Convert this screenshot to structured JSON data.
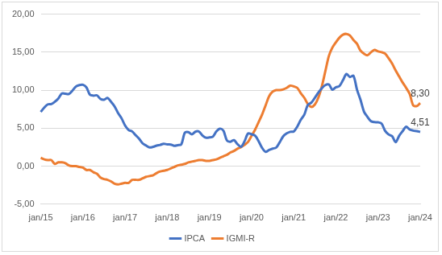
{
  "chart_data": {
    "type": "line",
    "categories": [
      "jan/15",
      null,
      null,
      null,
      null,
      null,
      null,
      null,
      null,
      null,
      null,
      null,
      "jan/16",
      null,
      null,
      null,
      null,
      null,
      null,
      null,
      null,
      null,
      null,
      null,
      "jan/17",
      null,
      null,
      null,
      null,
      null,
      null,
      null,
      null,
      null,
      null,
      null,
      "jan/18",
      null,
      null,
      null,
      null,
      null,
      null,
      null,
      null,
      null,
      null,
      null,
      "jan/19",
      null,
      null,
      null,
      null,
      null,
      null,
      null,
      null,
      null,
      null,
      null,
      "jan/20",
      null,
      null,
      null,
      null,
      null,
      null,
      null,
      null,
      null,
      null,
      null,
      "jan/21",
      null,
      null,
      null,
      null,
      null,
      null,
      null,
      null,
      null,
      null,
      null,
      "jan/22",
      null,
      null,
      null,
      null,
      null,
      null,
      null,
      null,
      null,
      null,
      null,
      "jan/23",
      null,
      null,
      null,
      null,
      null,
      null,
      null,
      null,
      null,
      null,
      null,
      "jan/24"
    ],
    "series": [
      {
        "name": "IPCA",
        "color": "#4472c4",
        "values": [
          7.14,
          7.7,
          8.13,
          8.17,
          8.47,
          8.89,
          9.56,
          9.53,
          9.49,
          9.93,
          10.48,
          10.67,
          10.71,
          10.36,
          9.39,
          9.28,
          9.32,
          8.84,
          8.74,
          8.97,
          8.48,
          7.87,
          6.99,
          6.29,
          5.35,
          4.76,
          4.57,
          4.08,
          3.6,
          3.0,
          2.71,
          2.46,
          2.54,
          2.7,
          2.8,
          2.95,
          2.86,
          2.84,
          2.68,
          2.76,
          2.86,
          4.39,
          4.48,
          4.19,
          4.53,
          4.56,
          4.05,
          3.75,
          3.78,
          3.89,
          4.58,
          4.94,
          4.66,
          3.37,
          3.22,
          3.43,
          2.89,
          2.54,
          3.27,
          4.31,
          4.19,
          4.01,
          3.3,
          2.4,
          1.88,
          2.13,
          2.31,
          2.44,
          3.14,
          3.92,
          4.31,
          4.52,
          4.56,
          5.2,
          6.1,
          6.76,
          8.06,
          8.35,
          8.99,
          9.68,
          10.25,
          10.67,
          10.74,
          10.06,
          10.38,
          10.54,
          11.3,
          12.13,
          11.73,
          11.89,
          10.07,
          8.73,
          7.17,
          6.47,
          5.9,
          5.79,
          5.77,
          5.6,
          4.65,
          4.18,
          3.94,
          3.16,
          3.99,
          4.61,
          5.19,
          4.82,
          4.68,
          4.62,
          4.51
        ],
        "value_labels": [
          null,
          null,
          null,
          null,
          null,
          null,
          null,
          null,
          null,
          null,
          null,
          null,
          null,
          null,
          null,
          null,
          null,
          null,
          null,
          null,
          null,
          null,
          null,
          null,
          null,
          null,
          null,
          null,
          null,
          null,
          null,
          null,
          null,
          null,
          null,
          null,
          null,
          null,
          null,
          null,
          null,
          null,
          null,
          null,
          null,
          null,
          null,
          null,
          null,
          null,
          null,
          null,
          null,
          null,
          null,
          null,
          null,
          null,
          null,
          null,
          null,
          null,
          null,
          null,
          null,
          null,
          null,
          null,
          null,
          null,
          null,
          null,
          null,
          null,
          null,
          null,
          null,
          null,
          null,
          null,
          null,
          null,
          null,
          null,
          null,
          null,
          null,
          null,
          null,
          null,
          null,
          null,
          null,
          null,
          null,
          null,
          null,
          null,
          null,
          null,
          null,
          null,
          null,
          null,
          null,
          null,
          null,
          null,
          "4,51"
        ]
      },
      {
        "name": "IGMI-R",
        "color": "#ed7d31",
        "values": [
          1.1,
          0.9,
          0.8,
          0.8,
          0.3,
          0.5,
          0.5,
          0.4,
          0.1,
          0.0,
          0.0,
          -0.1,
          -0.2,
          -0.5,
          -0.5,
          -0.8,
          -1.0,
          -1.5,
          -1.7,
          -1.8,
          -2.0,
          -2.3,
          -2.4,
          -2.3,
          -2.2,
          -2.2,
          -1.8,
          -1.8,
          -1.8,
          -1.6,
          -1.4,
          -1.3,
          -1.2,
          -0.9,
          -0.7,
          -0.6,
          -0.5,
          -0.3,
          -0.1,
          0.1,
          0.2,
          0.3,
          0.5,
          0.6,
          0.7,
          0.8,
          0.8,
          0.7,
          0.7,
          0.8,
          0.9,
          1.1,
          1.3,
          1.5,
          1.8,
          2.0,
          2.3,
          2.5,
          2.8,
          3.2,
          4.0,
          4.8,
          5.8,
          6.8,
          8.0,
          9.2,
          9.8,
          10.0,
          10.0,
          10.1,
          10.3,
          10.6,
          10.5,
          10.3,
          9.6,
          9.0,
          8.2,
          7.8,
          8.1,
          9.0,
          10.5,
          12.5,
          14.5,
          15.6,
          16.3,
          16.9,
          17.3,
          17.4,
          17.2,
          16.6,
          16.1,
          15.2,
          14.8,
          14.6,
          15.0,
          15.3,
          15.1,
          15.0,
          14.8,
          14.2,
          13.5,
          12.6,
          11.8,
          11.0,
          10.3,
          9.5,
          8.0,
          7.9,
          8.3
        ],
        "value_labels": [
          null,
          null,
          null,
          null,
          null,
          null,
          null,
          null,
          null,
          null,
          null,
          null,
          null,
          null,
          null,
          null,
          null,
          null,
          null,
          null,
          null,
          null,
          null,
          null,
          null,
          null,
          null,
          null,
          null,
          null,
          null,
          null,
          null,
          null,
          null,
          null,
          null,
          null,
          null,
          null,
          null,
          null,
          null,
          null,
          null,
          null,
          null,
          null,
          null,
          null,
          null,
          null,
          null,
          null,
          null,
          null,
          null,
          null,
          null,
          null,
          null,
          null,
          null,
          null,
          null,
          null,
          null,
          null,
          null,
          null,
          null,
          null,
          null,
          null,
          null,
          null,
          null,
          null,
          null,
          null,
          null,
          null,
          null,
          null,
          null,
          null,
          null,
          null,
          null,
          null,
          null,
          null,
          null,
          null,
          null,
          null,
          null,
          null,
          null,
          null,
          null,
          null,
          null,
          null,
          null,
          null,
          null,
          null,
          "8,30"
        ]
      }
    ],
    "ylim": [
      -5,
      20
    ],
    "yticks": [
      {
        "value": -5,
        "label": "-5,00"
      },
      {
        "value": 0,
        "label": "0,00"
      },
      {
        "value": 5,
        "label": "5,00"
      },
      {
        "value": 10,
        "label": "10,00"
      },
      {
        "value": 15,
        "label": "15,00"
      },
      {
        "value": 20,
        "label": "20,00"
      }
    ],
    "grid": true,
    "legend": "bottom",
    "data_labels": true
  }
}
